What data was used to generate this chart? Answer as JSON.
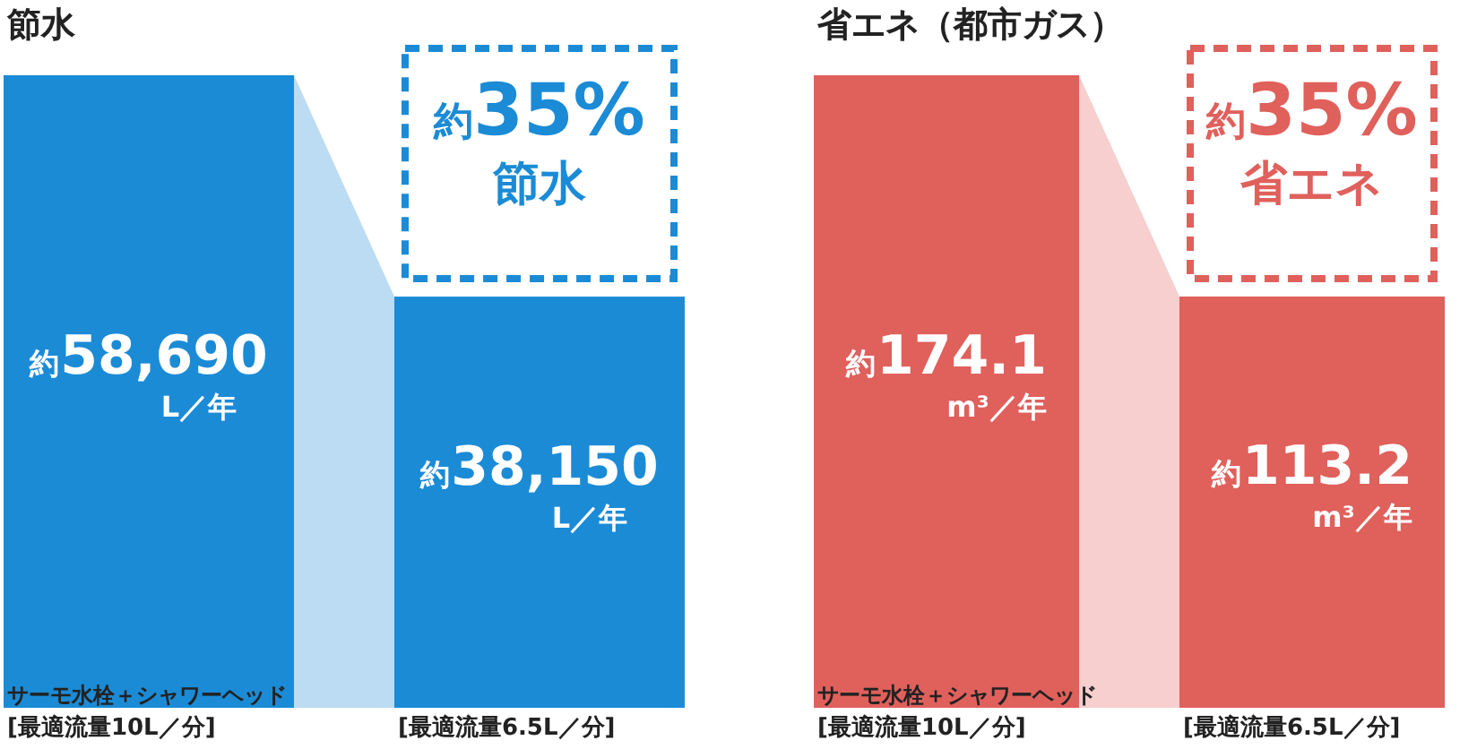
{
  "chart_data": [
    {
      "type": "bar",
      "title": "節水",
      "categories": [
        "サーモ水栓＋シャワーヘッド\n[最適流量10L／分]",
        "\n[最適流量6.5L／分]"
      ],
      "values": [
        58690,
        38150
      ],
      "value_labels": [
        "約58,690\nL／年",
        "約38,150\nL／年"
      ],
      "colors": [
        "#1b8bd6",
        "#1b8bd6"
      ],
      "annotations": [
        "約35%\n節水"
      ]
    },
    {
      "type": "bar",
      "title": "省エネ（都市ガス）",
      "categories": [
        "サーモ水栓＋シャワーヘッド\n[最適流量10L／分]",
        "\n[最適流量6.5L／分]"
      ],
      "values": [
        174.1,
        113.2
      ],
      "value_labels": [
        "約174.1\nm³／年",
        "約113.2\nm³／年"
      ],
      "colors": [
        "#e0605c",
        "#e0605c"
      ],
      "annotations": [
        "約35%\n省エネ"
      ]
    }
  ]
}
